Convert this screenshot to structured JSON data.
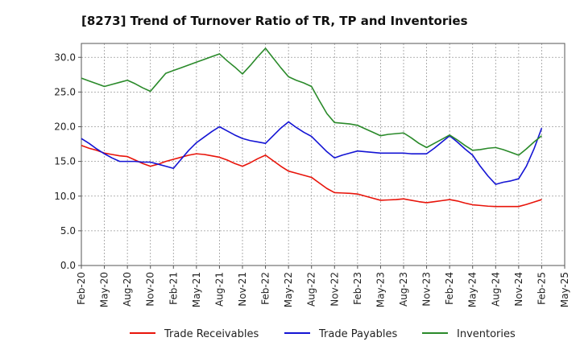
{
  "chart_data": {
    "type": "line",
    "title": "[8273]  Trend of Turnover Ratio of TR, TP and Inventories",
    "xlabel": "",
    "ylabel": "",
    "x": [
      "Feb-20",
      "Mar-20",
      "Apr-20",
      "May-20",
      "Jun-20",
      "Jul-20",
      "Aug-20",
      "Sep-20",
      "Oct-20",
      "Nov-20",
      "Dec-20",
      "Jan-21",
      "Feb-21",
      "Mar-21",
      "Apr-21",
      "May-21",
      "Jun-21",
      "Jul-21",
      "Aug-21",
      "Sep-21",
      "Oct-21",
      "Nov-21",
      "Dec-21",
      "Jan-22",
      "Feb-22",
      "Mar-22",
      "Apr-22",
      "May-22",
      "Jun-22",
      "Jul-22",
      "Aug-22",
      "Sep-22",
      "Oct-22",
      "Nov-22",
      "Dec-22",
      "Jan-23",
      "Feb-23",
      "Mar-23",
      "Apr-23",
      "May-23",
      "Jun-23",
      "Jul-23",
      "Aug-23",
      "Sep-23",
      "Oct-23",
      "Nov-23",
      "Dec-23",
      "Jan-24",
      "Feb-24",
      "Mar-24",
      "Apr-24",
      "May-24",
      "Jun-24",
      "Jul-24",
      "Aug-24",
      "Sep-24",
      "Oct-24",
      "Nov-24",
      "Dec-24",
      "Jan-25",
      "Feb-25"
    ],
    "tick_labels": [
      "Feb-20",
      "May-20",
      "Aug-20",
      "Nov-20",
      "Feb-21",
      "May-21",
      "Aug-21",
      "Nov-21",
      "Feb-22",
      "May-22",
      "Aug-22",
      "Nov-22",
      "Feb-23",
      "May-23",
      "Aug-23",
      "Nov-23",
      "Feb-24",
      "May-24",
      "Aug-24",
      "Nov-24",
      "Feb-25",
      "May-25"
    ],
    "y_ticks": [
      "0.0",
      "5.0",
      "10.0",
      "15.0",
      "20.0",
      "25.0",
      "30.0"
    ],
    "ylim": [
      0,
      32
    ],
    "grid": true,
    "legend_position": "bottom",
    "series": [
      {
        "name": "Trade Receivables",
        "color": "#e8140a",
        "values": [
          17.3,
          16.9,
          16.6,
          16.2,
          16.0,
          15.8,
          15.7,
          15.2,
          14.7,
          14.3,
          14.6,
          15.0,
          15.3,
          15.6,
          15.9,
          16.1,
          16.0,
          15.8,
          15.6,
          15.2,
          14.7,
          14.3,
          14.8,
          15.4,
          15.9,
          15.1,
          14.3,
          13.6,
          13.3,
          13.0,
          12.7,
          11.9,
          11.1,
          10.5,
          10.45,
          10.4,
          10.3,
          10.0,
          9.7,
          9.4,
          9.45,
          9.5,
          9.6,
          9.4,
          9.2,
          9.05,
          9.2,
          9.35,
          9.5,
          9.3,
          9.0,
          8.75,
          8.65,
          8.55,
          8.5,
          8.5,
          8.5,
          8.5,
          8.8,
          9.15,
          9.5
        ]
      },
      {
        "name": "Trade Payables",
        "color": "#1414d4",
        "values": [
          18.3,
          17.6,
          16.8,
          16.1,
          15.5,
          15.0,
          15.0,
          15.0,
          14.9,
          14.9,
          14.6,
          14.3,
          14.0,
          15.3,
          16.6,
          17.7,
          18.5,
          19.3,
          20.0,
          19.4,
          18.8,
          18.3,
          18.0,
          17.8,
          17.6,
          18.7,
          19.8,
          20.7,
          19.9,
          19.2,
          18.6,
          17.5,
          16.4,
          15.5,
          15.9,
          16.2,
          16.5,
          16.4,
          16.3,
          16.2,
          16.2,
          16.2,
          16.2,
          16.1,
          16.1,
          16.1,
          16.9,
          17.8,
          18.7,
          17.8,
          16.8,
          15.9,
          14.3,
          12.9,
          11.7,
          12.0,
          12.2,
          12.5,
          14.3,
          16.8,
          19.8
        ]
      },
      {
        "name": "Inventories",
        "color": "#2a8a2a",
        "values": [
          27.0,
          26.6,
          26.2,
          25.8,
          26.1,
          26.4,
          26.7,
          26.2,
          25.6,
          25.1,
          26.4,
          27.7,
          28.1,
          28.5,
          28.9,
          29.3,
          29.7,
          30.1,
          30.5,
          29.5,
          28.6,
          27.6,
          28.8,
          30.1,
          31.3,
          29.9,
          28.5,
          27.2,
          26.7,
          26.3,
          25.8,
          23.8,
          21.9,
          20.6,
          20.5,
          20.4,
          20.2,
          19.7,
          19.2,
          18.7,
          18.9,
          19.0,
          19.1,
          18.4,
          17.6,
          17.0,
          17.6,
          18.2,
          18.8,
          18.1,
          17.3,
          16.6,
          16.7,
          16.9,
          17.0,
          16.7,
          16.3,
          15.9,
          16.8,
          17.8,
          18.7
        ]
      }
    ]
  }
}
